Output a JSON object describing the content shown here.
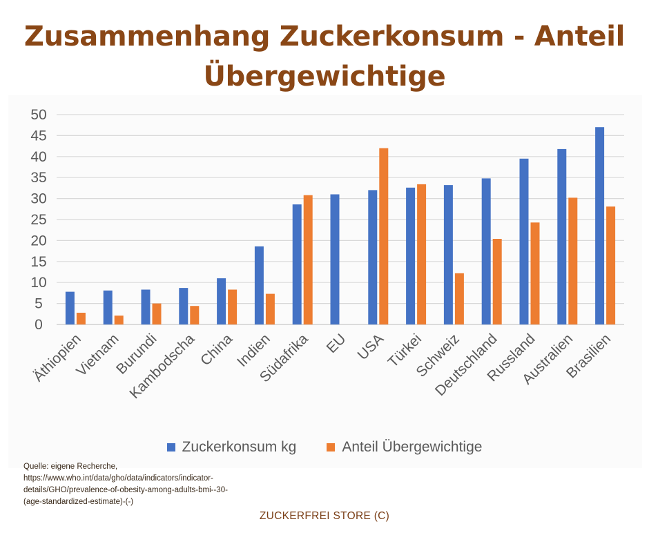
{
  "title_lines": [
    "Zusammenhang Zuckerkonsum - Anteil",
    "Übergewichtige"
  ],
  "chart_data": {
    "type": "bar",
    "title": "Zusammenhang Zuckerkonsum - Anteil Übergewichtige",
    "categories": [
      "Äthiopien",
      "Vietnam",
      "Burundi",
      "Kambodscha",
      "China",
      "Indien",
      "Südafrika",
      "EU",
      "USA",
      "Türkei",
      "Schweiz",
      "Deutschland",
      "Russland",
      "Australien",
      "Brasilien"
    ],
    "series": [
      {
        "name": "Zuckerkonsum kg",
        "color": "#4472c4",
        "values": [
          7.8,
          8.1,
          8.3,
          8.7,
          11.0,
          18.6,
          28.6,
          31.0,
          32.0,
          32.6,
          33.2,
          34.8,
          39.5,
          41.8,
          47.0
        ]
      },
      {
        "name": "Anteil Übergewichtige",
        "color": "#ed7d31",
        "values": [
          2.8,
          2.1,
          5.0,
          4.4,
          8.3,
          7.3,
          30.8,
          null,
          42.0,
          33.4,
          12.2,
          20.4,
          24.3,
          30.2,
          28.1
        ]
      }
    ],
    "ylim": [
      0,
      50
    ],
    "yticks": [
      0,
      5,
      10,
      15,
      20,
      25,
      30,
      35,
      40,
      45,
      50
    ],
    "grid": true,
    "legend": "bottom",
    "xlabel": "",
    "ylabel": ""
  },
  "source_lines": [
    "Quelle: eigene Recherche,",
    "https://www.who.int/data/gho/data/indicators/indicator-",
    "details/GHO/prevalence-of-obesity-among-adults-bmi--30-",
    "(age-standardized-estimate)-(-)"
  ],
  "footer": "ZUCKERFREI STORE (C)"
}
